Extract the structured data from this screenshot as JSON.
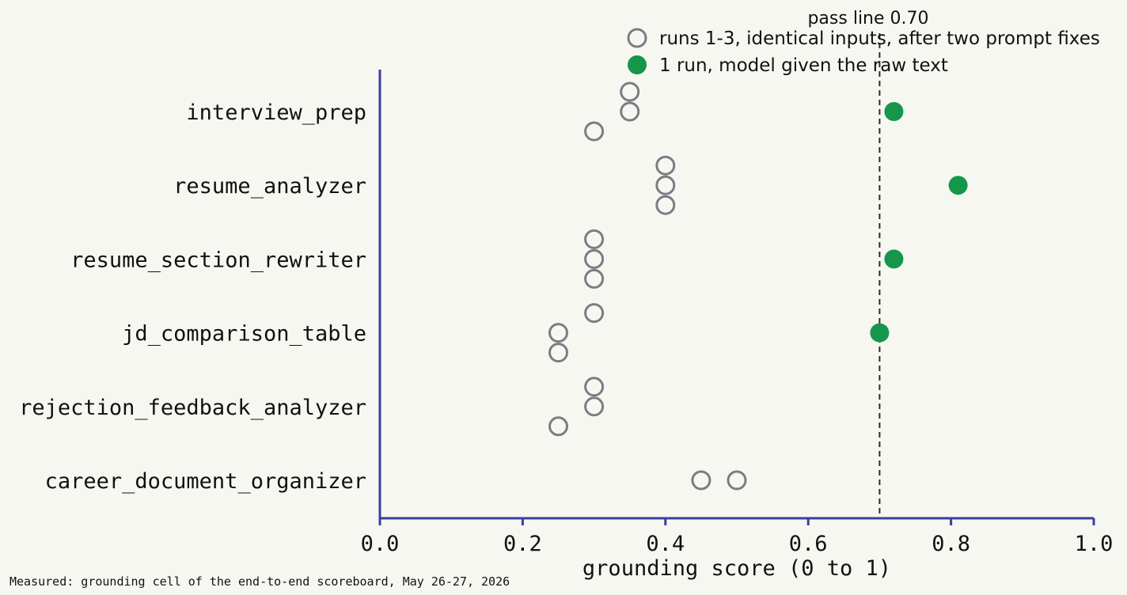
{
  "chart_data": {
    "type": "scatter",
    "orientation": "horizontal-strip",
    "xlabel": "grounding score (0 to 1)",
    "xlim": [
      0.0,
      1.0
    ],
    "xticks": [
      "0.0",
      "0.2",
      "0.4",
      "0.6",
      "0.8",
      "1.0"
    ],
    "categories": [
      "interview_prep",
      "resume_analyzer",
      "resume_section_rewriter",
      "jd_comparison_table",
      "rejection_feedback_analyzer",
      "career_document_organizer"
    ],
    "series": [
      {
        "name": "runs 1-3, identical inputs, after two prompt fixes",
        "marker": "open-circle",
        "color": "#7a7d85",
        "points": [
          {
            "category": "interview_prep",
            "values": [
              0.35,
              0.35,
              0.3
            ]
          },
          {
            "category": "resume_analyzer",
            "values": [
              0.4,
              0.4,
              0.4
            ]
          },
          {
            "category": "resume_section_rewriter",
            "values": [
              0.3,
              0.3,
              0.3
            ]
          },
          {
            "category": "jd_comparison_table",
            "values": [
              0.3,
              0.25,
              0.25
            ]
          },
          {
            "category": "rejection_feedback_analyzer",
            "values": [
              0.3,
              0.3,
              0.25
            ]
          },
          {
            "category": "career_document_organizer",
            "values": [
              0.45,
              0.5
            ]
          }
        ]
      },
      {
        "name": "1 run, model given the raw text",
        "marker": "filled-circle",
        "color": "#15964a",
        "points": [
          {
            "category": "interview_prep",
            "values": [
              0.72
            ]
          },
          {
            "category": "resume_analyzer",
            "values": [
              0.81
            ]
          },
          {
            "category": "resume_section_rewriter",
            "values": [
              0.72
            ]
          },
          {
            "category": "jd_comparison_table",
            "values": [
              0.7
            ]
          },
          {
            "category": "rejection_feedback_analyzer",
            "values": []
          },
          {
            "category": "career_document_organizer",
            "values": []
          }
        ]
      }
    ],
    "reference_line": {
      "value": 0.7,
      "label": "pass line 0.70",
      "style": "dashed"
    },
    "legend_position": "top-right",
    "grid": false,
    "axis_color": "#3a3f9e",
    "footnote": "Measured: grounding cell of the end-to-end scoreboard, May 26-27, 2026"
  }
}
